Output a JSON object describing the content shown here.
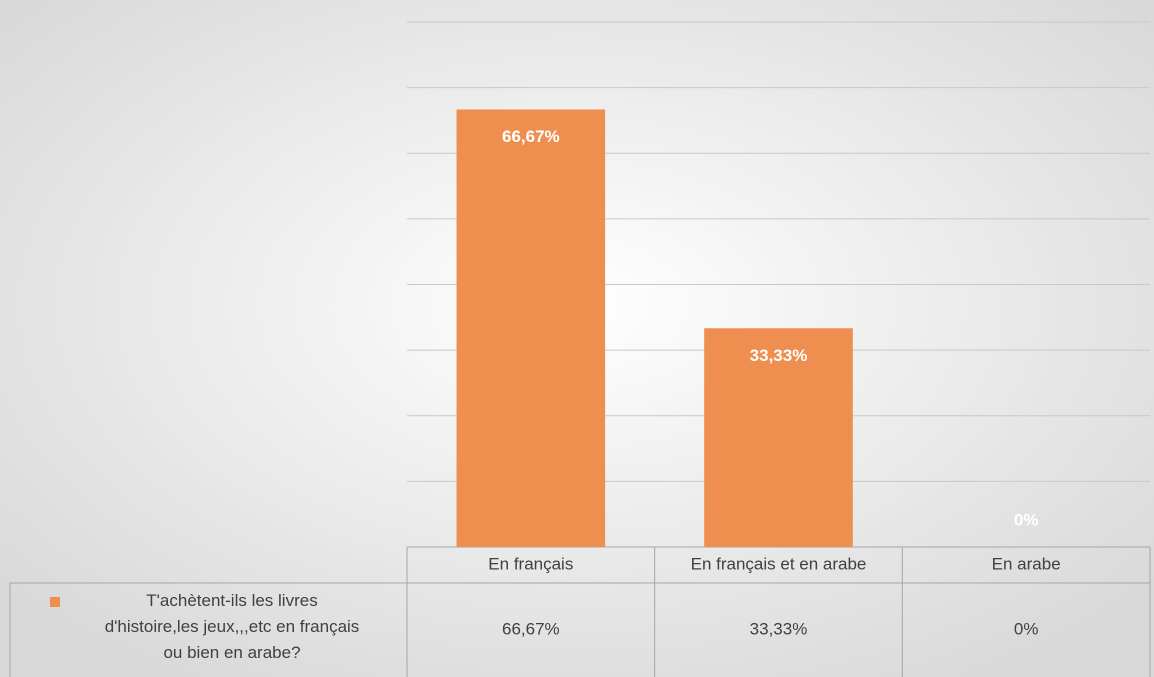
{
  "chart_data": {
    "type": "bar",
    "categories": [
      "En français",
      "En français et en arabe",
      "En arabe"
    ],
    "series": [
      {
        "name": "T'achètent-ils les livres d'histoire,les jeux,,,etc en français ou bien en arabe?",
        "color": "#ef8f4f",
        "values": [
          66.67,
          33.33,
          0
        ],
        "value_labels": [
          "66,67%",
          "33,33%",
          "0%"
        ]
      }
    ],
    "ylim": [
      0,
      80
    ],
    "yticks": [
      0,
      10,
      20,
      30,
      40,
      50,
      60,
      70,
      80
    ],
    "grid": true
  }
}
